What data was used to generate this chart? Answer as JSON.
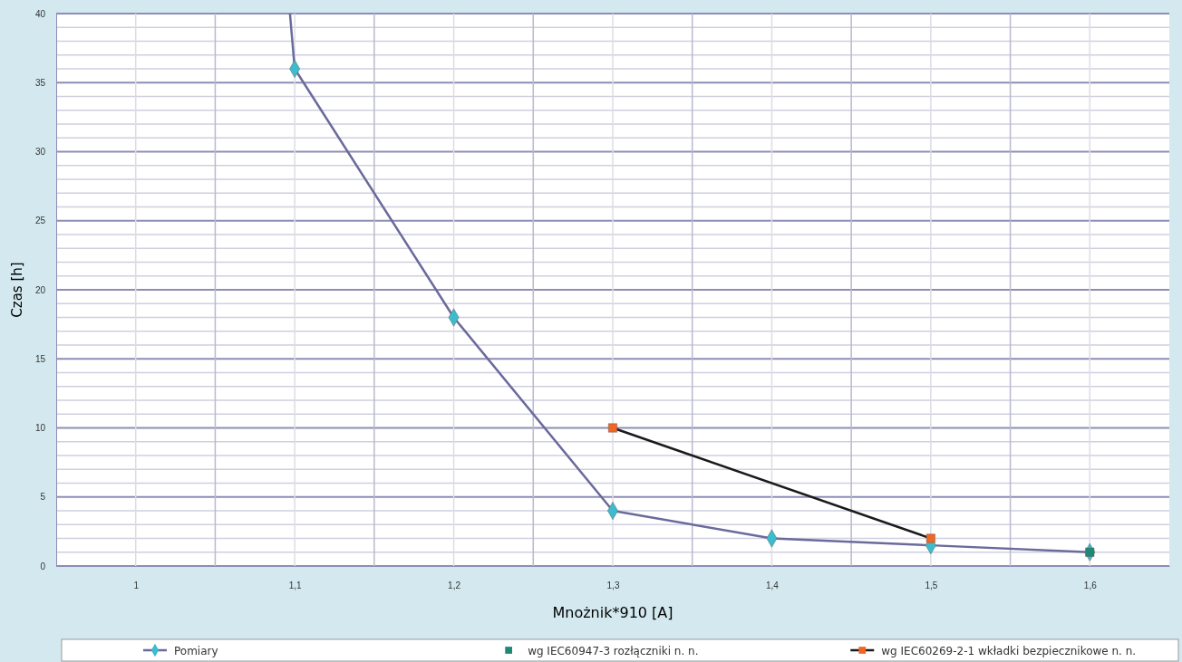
{
  "chart_data": {
    "type": "line",
    "xlabel": "Mnożnik*910 [A]",
    "ylabel": "Czas [h]",
    "xlim": [
      0.95,
      1.65
    ],
    "xticks": [
      {
        "value": 1,
        "label": "1"
      },
      {
        "value": 1.05,
        "label": null
      },
      {
        "value": 1.1,
        "label": "1,1"
      },
      {
        "value": 1.15,
        "label": null
      },
      {
        "value": 1.2,
        "label": "1,2"
      },
      {
        "value": 1.25,
        "label": null
      },
      {
        "value": 1.3,
        "label": "1,3"
      },
      {
        "value": 1.35,
        "label": null
      },
      {
        "value": 1.4,
        "label": "1,4"
      },
      {
        "value": 1.45,
        "label": null
      },
      {
        "value": 1.5,
        "label": "1,5"
      },
      {
        "value": 1.55,
        "label": null
      },
      {
        "value": 1.6,
        "label": "1,6"
      }
    ],
    "ylim": [
      0,
      40
    ],
    "yticks": [
      0,
      {
        "value": 1,
        "label": null
      },
      {
        "value": 2,
        "label": null
      },
      {
        "value": 3,
        "label": null
      },
      {
        "value": 4,
        "label": null
      },
      5,
      {
        "value": 6,
        "label": null
      },
      {
        "value": 7,
        "label": null
      },
      {
        "value": 8,
        "label": null
      },
      {
        "value": 9,
        "label": null
      },
      10,
      {
        "value": 11,
        "label": null
      },
      {
        "value": 12,
        "label": null
      },
      {
        "value": 13,
        "label": null
      },
      {
        "value": 14,
        "label": null
      },
      15,
      {
        "value": 16,
        "label": null
      },
      {
        "value": 17,
        "label": null
      },
      {
        "value": 18,
        "label": null
      },
      {
        "value": 19,
        "label": null
      },
      20,
      {
        "value": 21,
        "label": null
      },
      {
        "value": 22,
        "label": null
      },
      {
        "value": 23,
        "label": null
      },
      {
        "value": 24,
        "label": null
      },
      25,
      {
        "value": 26,
        "label": null
      },
      {
        "value": 27,
        "label": null
      },
      {
        "value": 28,
        "label": null
      },
      {
        "value": 29,
        "label": null
      },
      30,
      {
        "value": 31,
        "label": null
      },
      {
        "value": 32,
        "label": null
      },
      {
        "value": 33,
        "label": null
      },
      {
        "value": 34,
        "label": null
      },
      35,
      {
        "value": 36,
        "label": null
      },
      {
        "value": 37,
        "label": null
      },
      {
        "value": 38,
        "label": null
      },
      {
        "value": 39,
        "label": null
      },
      40
    ],
    "grid": true,
    "legend": "bottom",
    "line_style": "solid",
    "series": [
      {
        "type": "line",
        "color": "#6a6a9c",
        "x": [
          1.097,
          1.1
        ],
        "values": [
          40,
          36
        ],
        "marker": "none"
      },
      {
        "name": "Pomiary",
        "type": "line",
        "color": "#6a6a9c",
        "colors": [
          "#3cbccc",
          "#3cbccc",
          "#3cbccc",
          "#3cbccc",
          "#3cbccc",
          "#3cbccc"
        ],
        "marker": "diamond",
        "x": [
          1.1,
          1.2,
          1.3,
          1.4,
          1.5,
          1.6
        ],
        "values": [
          36,
          18,
          4,
          2,
          1.5,
          1
        ]
      },
      {
        "name": "wg IEC60947-3 rozłączniki n. n.",
        "type": "scatter",
        "color": "#1e8a74",
        "marker": "square",
        "x": [
          1.6
        ],
        "values": [
          1
        ]
      },
      {
        "name": "wg IEC60269-2-1 wkładki bezpiecznikowe n. n.",
        "type": "line",
        "color": "#1a1a1a",
        "colors": [
          "#f26522",
          "#f26522"
        ],
        "marker": "square",
        "x": [
          1.3,
          1.5
        ],
        "values": [
          10,
          2
        ]
      }
    ]
  }
}
